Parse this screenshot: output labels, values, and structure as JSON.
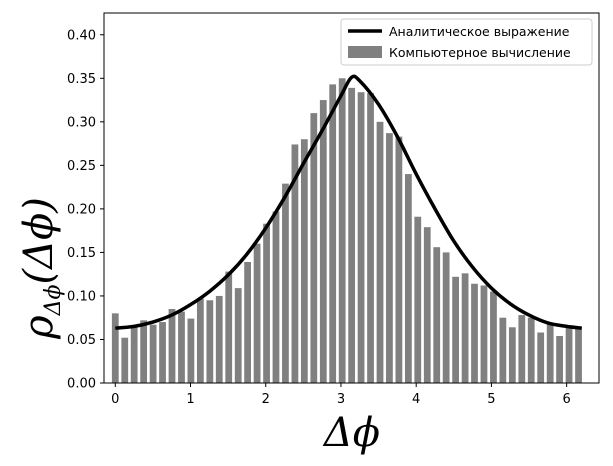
{
  "chart_data": {
    "type": "bar",
    "xlabel": "Δϕ",
    "ylabel": {
      "main": "ρ",
      "sub": "Δϕ",
      "arg": "(Δϕ)"
    },
    "xlim": [
      -0.15,
      6.43
    ],
    "ylim": [
      0,
      0.425
    ],
    "xticks": [
      0,
      1,
      2,
      3,
      4,
      5,
      6
    ],
    "yticks": [
      0.0,
      0.05,
      0.1,
      0.15,
      0.2,
      0.25,
      0.3,
      0.35,
      0.4
    ],
    "ytick_labels": [
      "0.00",
      "0.05",
      "0.10",
      "0.15",
      "0.20",
      "0.25",
      "0.30",
      "0.35",
      "0.40"
    ],
    "grid": false,
    "legend_placement": "top-right",
    "bar_width": 0.09,
    "series": [
      {
        "name": "Аналитическое выражение",
        "type": "line",
        "color": "#000000",
        "x": [
          0.0,
          0.25,
          0.5,
          0.75,
          1.0,
          1.25,
          1.5,
          1.75,
          2.0,
          2.25,
          2.5,
          2.75,
          3.0,
          3.14,
          3.25,
          3.5,
          3.75,
          4.0,
          4.25,
          4.5,
          4.75,
          5.0,
          5.25,
          5.5,
          5.75,
          6.0,
          6.2
        ],
        "y": [
          0.063,
          0.065,
          0.07,
          0.078,
          0.09,
          0.105,
          0.124,
          0.148,
          0.178,
          0.213,
          0.252,
          0.29,
          0.33,
          0.351,
          0.347,
          0.32,
          0.283,
          0.24,
          0.2,
          0.163,
          0.133,
          0.109,
          0.091,
          0.078,
          0.069,
          0.065,
          0.063
        ]
      },
      {
        "name": "Компьютерное вычисление",
        "type": "bar",
        "color": "#808080",
        "x": [
          0.0,
          0.126,
          0.251,
          0.377,
          0.503,
          0.628,
          0.754,
          0.88,
          1.005,
          1.131,
          1.257,
          1.382,
          1.508,
          1.634,
          1.759,
          1.885,
          2.011,
          2.136,
          2.262,
          2.388,
          2.513,
          2.639,
          2.765,
          2.89,
          3.016,
          3.142,
          3.267,
          3.393,
          3.519,
          3.644,
          3.77,
          3.896,
          4.021,
          4.147,
          4.273,
          4.398,
          4.524,
          4.65,
          4.775,
          4.901,
          5.027,
          5.152,
          5.278,
          5.404,
          5.529,
          5.655,
          5.781,
          5.906,
          6.032,
          6.158
        ],
        "y": [
          0.08,
          0.052,
          0.065,
          0.072,
          0.067,
          0.07,
          0.085,
          0.082,
          0.074,
          0.097,
          0.095,
          0.1,
          0.128,
          0.109,
          0.139,
          0.16,
          0.183,
          0.197,
          0.229,
          0.274,
          0.28,
          0.31,
          0.325,
          0.343,
          0.35,
          0.339,
          0.334,
          0.333,
          0.3,
          0.287,
          0.283,
          0.24,
          0.191,
          0.179,
          0.156,
          0.15,
          0.122,
          0.126,
          0.114,
          0.112,
          0.105,
          0.075,
          0.064,
          0.078,
          0.075,
          0.058,
          0.069,
          0.054,
          0.064,
          0.064
        ]
      }
    ]
  }
}
